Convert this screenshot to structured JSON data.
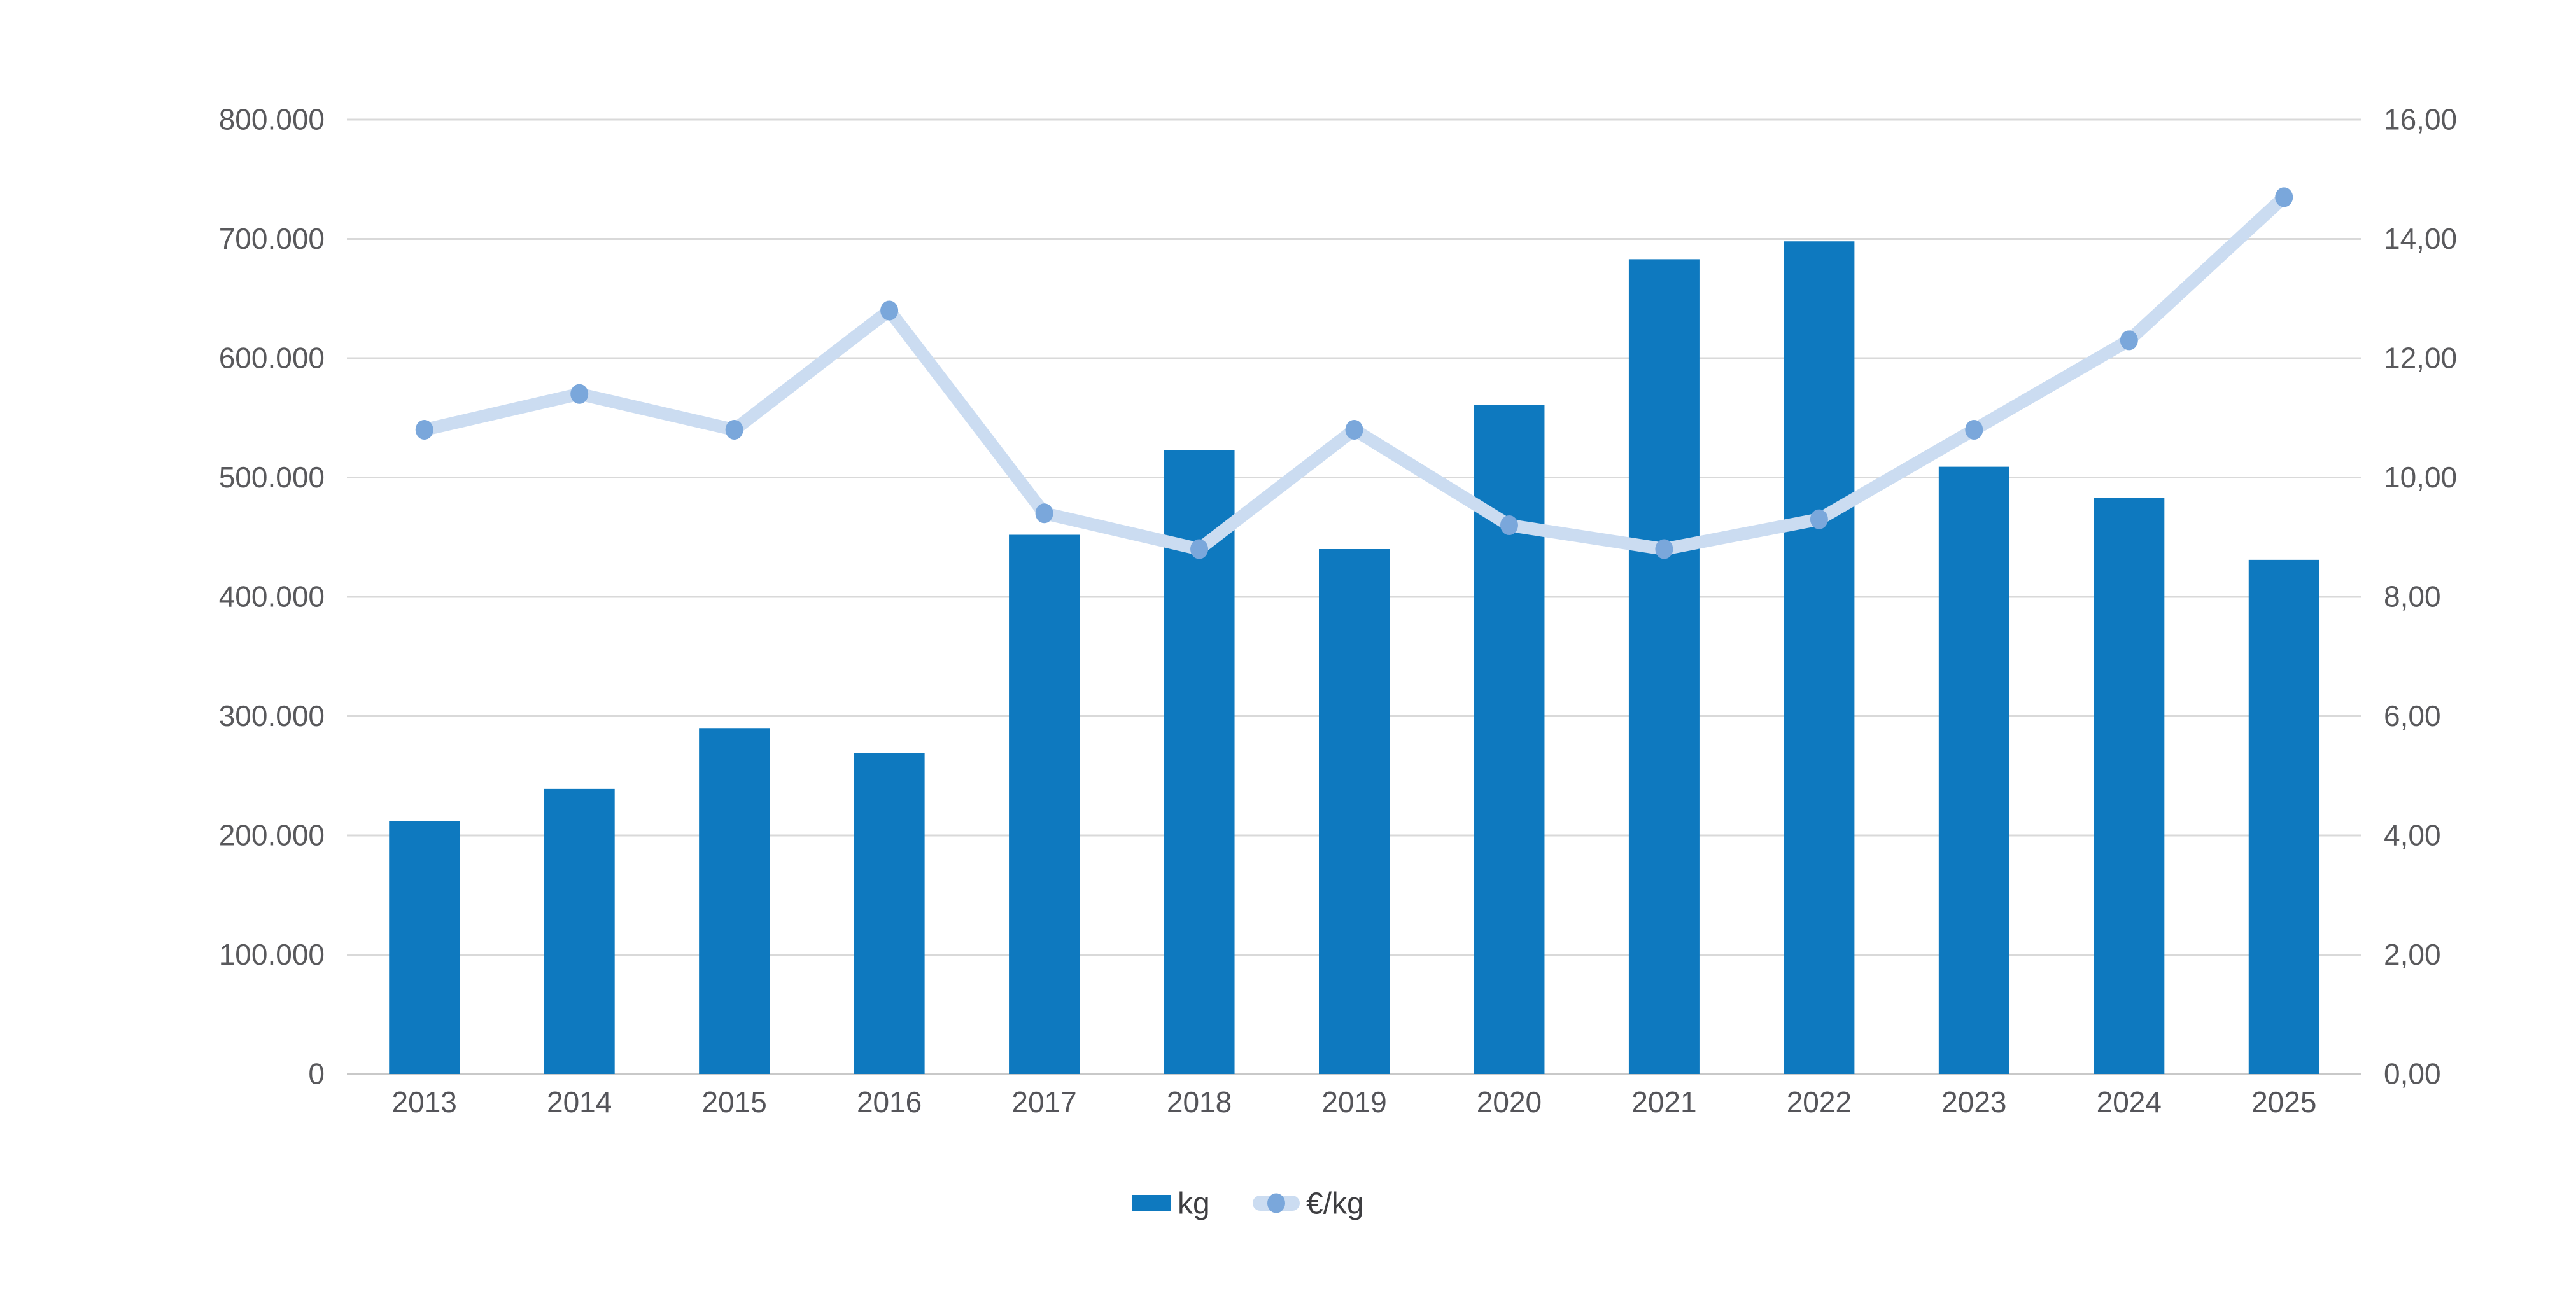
{
  "chart_data": {
    "type": "combo",
    "categories": [
      "2013",
      "2014",
      "2015",
      "2016",
      "2017",
      "2018",
      "2019",
      "2020",
      "2021",
      "2022",
      "2023",
      "2024",
      "2025"
    ],
    "series": [
      {
        "name": "kg",
        "type": "bar",
        "axis": "left",
        "values": [
          212000,
          239000,
          290000,
          269000,
          452000,
          523000,
          440000,
          561000,
          683000,
          698000,
          509000,
          483000,
          431000
        ]
      },
      {
        "name": "€/kg",
        "type": "line",
        "axis": "right",
        "values": [
          10.8,
          11.4,
          10.8,
          12.8,
          9.4,
          8.8,
          10.8,
          9.2,
          8.8,
          9.3,
          10.8,
          12.3,
          14.7
        ]
      }
    ],
    "left_axis": {
      "min": 0,
      "max": 800000,
      "step": 100000,
      "tick_labels_top_to_bottom": [
        "800.000",
        "700.000",
        "600.000",
        "500.000",
        "400.000",
        "300.000",
        "200.000",
        "100.000",
        "0"
      ]
    },
    "right_axis": {
      "min": 0,
      "max": 16,
      "step": 2,
      "tick_labels_top_to_bottom": [
        "16,00",
        "14,00",
        "12,00",
        "10,00",
        "8,00",
        "6,00",
        "4,00",
        "2,00",
        "0,00"
      ]
    },
    "grid": true,
    "legend_position": "bottom",
    "title": "",
    "xlabel": "",
    "ylabel_left": "",
    "ylabel_right": ""
  },
  "legend": {
    "items": [
      {
        "label": "kg",
        "marker": "bar-swatch"
      },
      {
        "label": "€/kg",
        "marker": "line-with-dot"
      }
    ]
  },
  "colors": {
    "bar": "#0e79bf",
    "line": "#cbdcf1",
    "marker": "#7aa7db",
    "gridline": "#d9d9d9",
    "baseline": "#c9c9c9",
    "tick_text": "#59595c",
    "legend_text": "#3d3d40",
    "background": "#ffffff"
  }
}
